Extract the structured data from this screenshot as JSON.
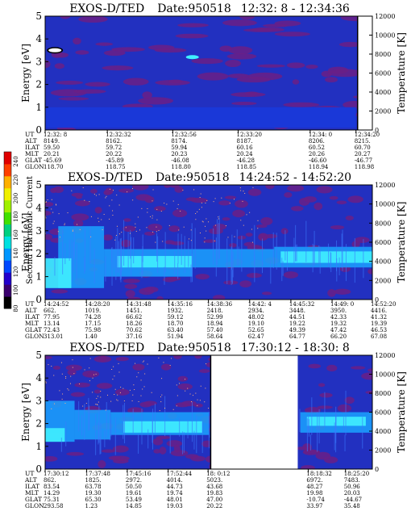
{
  "figure": {
    "colorbar": {
      "label": "Second Harmonic Current",
      "ticks": [
        "80",
        "100",
        "120",
        "140",
        "160",
        "180",
        "200",
        "220",
        "240"
      ],
      "colors": [
        "#000000",
        "#3a006e",
        "#2200cc",
        "#0048ff",
        "#0096ff",
        "#00e0e0",
        "#00d080",
        "#40e000",
        "#a0f000",
        "#f0f000",
        "#ffb000",
        "#ff4000",
        "#e00000"
      ]
    },
    "colors": {
      "background": "#2230c0",
      "purple": "#6a1e86",
      "cyan": "#1aa2ff",
      "bright": "#40f0ff",
      "black": "#000000"
    }
  },
  "chart_data": [
    {
      "type": "heatmap",
      "title": "EXOS-D/TED",
      "date_label": "Date:950518",
      "time_range": "12:32: 8 - 12:34:36",
      "ylabel": "Energy [eV]",
      "y2label": "Temperature [K]",
      "ylim": [
        0,
        5
      ],
      "y2lim": [
        0,
        12000
      ],
      "yticks": [
        "0",
        "1",
        "2",
        "3",
        "4",
        "5"
      ],
      "y2ticks": [
        "0",
        "2000",
        "4000",
        "6000",
        "8000",
        "10000",
        "12000"
      ],
      "row_labels": [
        "UT",
        "ALT",
        "ILAT",
        "MLT",
        "GLAT",
        "GLON"
      ],
      "columns": [
        {
          "UT": "12:32: 8",
          "ALT": "8149.",
          "ILAT": "59.50",
          "MLT": "20.21",
          "GLAT": "-45.69",
          "GLON": "118.70"
        },
        {
          "UT": "12:32:32",
          "ALT": "8162.",
          "ILAT": "59.72",
          "MLT": "20.22",
          "GLAT": "-45.89",
          "GLON": "118.75"
        },
        {
          "UT": "12:32:56",
          "ALT": "8174.",
          "ILAT": "59.94",
          "MLT": "20.23",
          "GLAT": "-46.08",
          "GLON": "118.80"
        },
        {
          "UT": "12:33:20",
          "ALT": "8187.",
          "ILAT": "60.16",
          "MLT": "20.24",
          "GLAT": "-46.28",
          "GLON": "118.85"
        },
        {
          "UT": "12:34: 0",
          "ALT": "8206.",
          "ILAT": "60.52",
          "MLT": "20.26",
          "GLAT": "-46.60",
          "GLON": "118.94"
        },
        {
          "UT": "12:34:20",
          "ALT": "8215.",
          "ILAT": "60.70",
          "MLT": "20.27",
          "GLAT": "-46.77",
          "GLON": "118.98"
        }
      ],
      "ut_positions": [
        0,
        0.19,
        0.39,
        0.59,
        0.81,
        0.95
      ],
      "gaps": [
        [
          0.955,
          1.0
        ]
      ],
      "low_energy_band": [
        [
          0.0,
          0.95,
          0.1,
          1
        ]
      ],
      "bright_spots": [
        [
          0.45,
          3.2
        ]
      ],
      "white_spots": [
        [
          0.03,
          3.5
        ]
      ]
    },
    {
      "type": "heatmap",
      "title": "EXOS-D/TED",
      "date_label": "Date:950518",
      "time_range": "14:24:52 - 14:52:20",
      "ylabel": "Energy [eV]",
      "y2label": "Temperature [K]",
      "ylim": [
        0,
        5
      ],
      "y2lim": [
        0,
        12000
      ],
      "yticks": [
        "0",
        "1",
        "2",
        "3",
        "4",
        "5"
      ],
      "y2ticks": [
        "0",
        "2000",
        "4000",
        "6000",
        "8000",
        "10000",
        "12000"
      ],
      "row_labels": [
        "UT",
        "ALT",
        "ILAT",
        "MLT",
        "GLAT",
        "GLON"
      ],
      "columns": [
        {
          "UT": "14:24:52",
          "ALT": "662.",
          "ILAT": "77.95",
          "MLT": "13.14",
          "GLAT": "72.43",
          "GLON": "313.01"
        },
        {
          "UT": "14:28:20",
          "ALT": "1019.",
          "ILAT": "74.28",
          "MLT": "17.15",
          "GLAT": "75.98",
          "GLON": "1.40"
        },
        {
          "UT": "14:31:48",
          "ALT": "1451.",
          "ILAT": "66.62",
          "MLT": "18.26",
          "GLAT": "70.62",
          "GLON": "37.16"
        },
        {
          "UT": "14:35:16",
          "ALT": "1932.",
          "ILAT": "59.12",
          "MLT": "18.70",
          "GLAT": "63.40",
          "GLON": "51.94"
        },
        {
          "UT": "14:38:36",
          "ALT": "2418.",
          "ILAT": "52.99",
          "MLT": "18.94",
          "GLAT": "57.40",
          "GLON": "58.64"
        },
        {
          "UT": "14:42: 4",
          "ALT": "2934.",
          "ILAT": "48.02",
          "MLT": "19.10",
          "GLAT": "52.65",
          "GLON": "62.47"
        },
        {
          "UT": "14:45:32",
          "ALT": "3448.",
          "ILAT": "44.51",
          "MLT": "19.22",
          "GLAT": "49.39",
          "GLON": "64.77"
        },
        {
          "UT": "14:49: 0",
          "ALT": "3950.",
          "ILAT": "42.33",
          "MLT": "19.32",
          "GLAT": "47.42",
          "GLON": "66.20"
        },
        {
          "UT": "14:52:20",
          "ALT": "4416.",
          "ILAT": "41.32",
          "MLT": "19.39",
          "GLAT": "46.53",
          "GLON": "67.08"
        }
      ],
      "ut_positions": [
        0,
        0.126,
        0.252,
        0.378,
        0.499,
        0.625,
        0.751,
        0.877,
        1.0
      ],
      "gaps": [],
      "main_band": [
        [
          0.04,
          0.18,
          0.5,
          3.2
        ],
        [
          0.18,
          0.45,
          1.0,
          2.2
        ],
        [
          0.45,
          0.7,
          1.4,
          2.2
        ],
        [
          0.7,
          1.0,
          1.4,
          2.3
        ]
      ],
      "peak_band": [
        [
          0.0,
          0.08,
          0.5,
          1.8
        ],
        [
          0.22,
          0.45,
          1.4,
          1.9
        ],
        [
          0.72,
          1.0,
          1.6,
          2.1
        ]
      ]
    },
    {
      "type": "heatmap",
      "title": "EXOS-D/TED",
      "date_label": "Date:950518",
      "time_range": "17:30:12 - 18:30: 8",
      "ylabel": "Energy [eV]",
      "y2label": "Temperature [K]",
      "ylim": [
        0,
        5
      ],
      "y2lim": [
        0,
        12000
      ],
      "yticks": [
        "0",
        "1",
        "2",
        "3",
        "4",
        "5"
      ],
      "y2ticks": [
        "0",
        "2000",
        "4000",
        "6000",
        "8000",
        "10000",
        "12000"
      ],
      "row_labels": [
        "UT",
        "ALT",
        "ILAT",
        "MLT",
        "GLAT",
        "GLON"
      ],
      "columns": [
        {
          "UT": "17:30:12",
          "ALT": "862.",
          "ILAT": "83.54",
          "MLT": "14.29",
          "GLAT": "75.31",
          "GLON": "293.58"
        },
        {
          "UT": "17:37:48",
          "ALT": "1825.",
          "ILAT": "63.78",
          "MLT": "19.30",
          "GLAT": "65.30",
          "GLON": "1.23"
        },
        {
          "UT": "17:45:16",
          "ALT": "2972.",
          "ILAT": "50.50",
          "MLT": "19.61",
          "GLAT": "53.49",
          "GLON": "14.85"
        },
        {
          "UT": "17:52:44",
          "ALT": "4014.",
          "ILAT": "44.73",
          "MLT": "19.74",
          "GLAT": "48.01",
          "GLON": "19.03"
        },
        {
          "UT": "18: 0:12",
          "ALT": "5023.",
          "ILAT": "43.68",
          "MLT": "19.83",
          "GLAT": "47.00",
          "GLON": "20.22"
        },
        {
          "UT": "18:18:32",
          "ALT": "6972.",
          "ILAT": "48.27",
          "MLT": "19.98",
          "GLAT": "-10.74",
          "GLON": "33.97"
        },
        {
          "UT": "18:25:20",
          "ALT": "7483.",
          "ILAT": "50.96",
          "MLT": "20.03",
          "GLAT": "-44.67",
          "GLON": "35.48"
        }
      ],
      "ut_positions": [
        0,
        0.127,
        0.251,
        0.376,
        0.498,
        0.804,
        0.918
      ],
      "gaps": [
        [
          0.506,
          0.772
        ]
      ],
      "main_band": [
        [
          0.0,
          0.09,
          1.2,
          3.0
        ],
        [
          0.09,
          0.2,
          1.3,
          2.6
        ],
        [
          0.2,
          0.5,
          1.5,
          2.5
        ],
        [
          0.78,
          1.0,
          1.6,
          2.5
        ]
      ],
      "peak_band": [
        [
          0.0,
          0.06,
          1.2,
          1.8
        ],
        [
          0.24,
          0.48,
          1.6,
          2.1
        ],
        [
          0.8,
          0.98,
          1.9,
          2.3
        ]
      ]
    }
  ]
}
